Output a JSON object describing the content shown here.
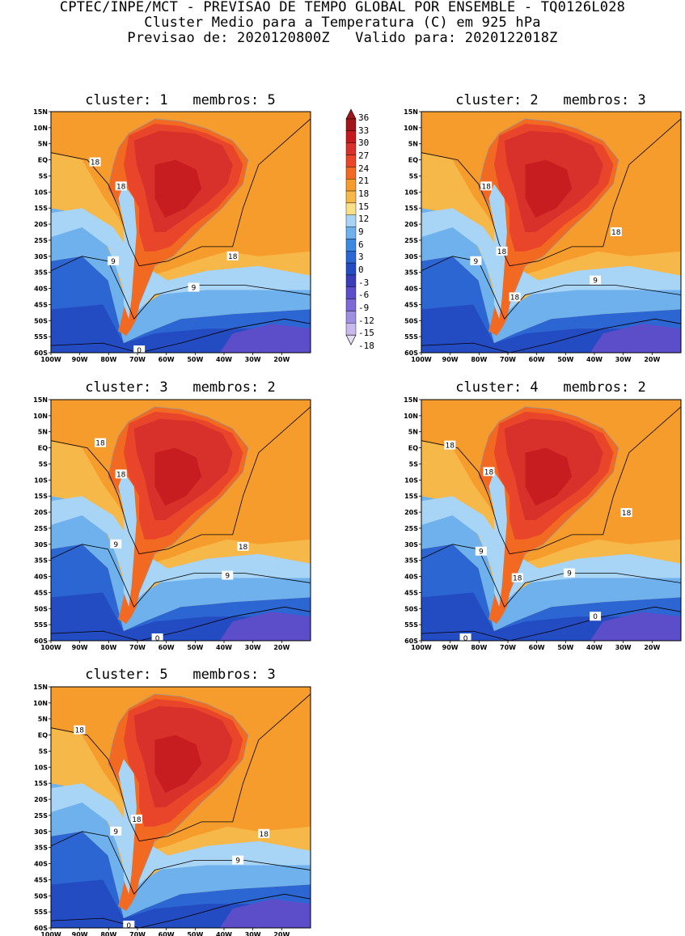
{
  "header": {
    "line1": "CPTEC/INPE/MCT - PREVISAO DE TEMPO GLOBAL POR ENSEMBLE - TQ0126L028",
    "line2": "Cluster Medio para a Temperatura (C) em 925 hPa",
    "line3": "Previsao de: 2020120800Z   Valido para: 2020122018Z"
  },
  "axes": {
    "lat_ticks": [
      "15N",
      "10N",
      "5N",
      "EQ",
      "5S",
      "10S",
      "15S",
      "20S",
      "25S",
      "30S",
      "35S",
      "40S",
      "45S",
      "50S",
      "55S",
      "60S"
    ],
    "lon_ticks": [
      "100W",
      "90W",
      "80W",
      "70W",
      "60W",
      "50W",
      "40W",
      "30W",
      "20W"
    ],
    "lat_range": [
      -60,
      15
    ],
    "lon_range": [
      -100,
      -10
    ]
  },
  "colorbar": {
    "labels": [
      "36",
      "33",
      "30",
      "27",
      "24",
      "21",
      "18",
      "15",
      "12",
      "9",
      "6",
      "3",
      "0",
      "-3",
      "-6",
      "-9",
      "-12",
      "-15",
      "-18"
    ],
    "colors": [
      "#a0161a",
      "#c41a1e",
      "#d8302a",
      "#e8452a",
      "#f26a22",
      "#f59c2c",
      "#f7b84a",
      "#fbe08a",
      "#a8d4f5",
      "#6eb1ed",
      "#3c8ae0",
      "#2b66d2",
      "#244cc2",
      "#3a3cb8",
      "#5b4ec8",
      "#7d6ad6",
      "#a08ee0",
      "#c8b8ec",
      "#e6dcf6"
    ]
  },
  "panels": [
    {
      "title": "cluster: 1   membros: 5",
      "labels": [
        "18",
        "18",
        "9",
        "18",
        "9",
        "0"
      ]
    },
    {
      "title": "cluster: 2   membros: 3",
      "labels": [
        "18",
        "18",
        "9",
        "18",
        "9",
        "18"
      ]
    },
    {
      "title": "cluster: 3   membros: 2",
      "labels": [
        "18",
        "18",
        "9",
        "18",
        "9",
        "0"
      ]
    },
    {
      "title": "cluster: 4   membros: 2",
      "labels": [
        "18",
        "18",
        "9",
        "18",
        "18",
        "9",
        "0",
        "0"
      ]
    },
    {
      "title": "cluster: 5   membros: 3",
      "labels": [
        "18",
        "18",
        "9",
        "18",
        "9",
        "0"
      ]
    }
  ]
}
